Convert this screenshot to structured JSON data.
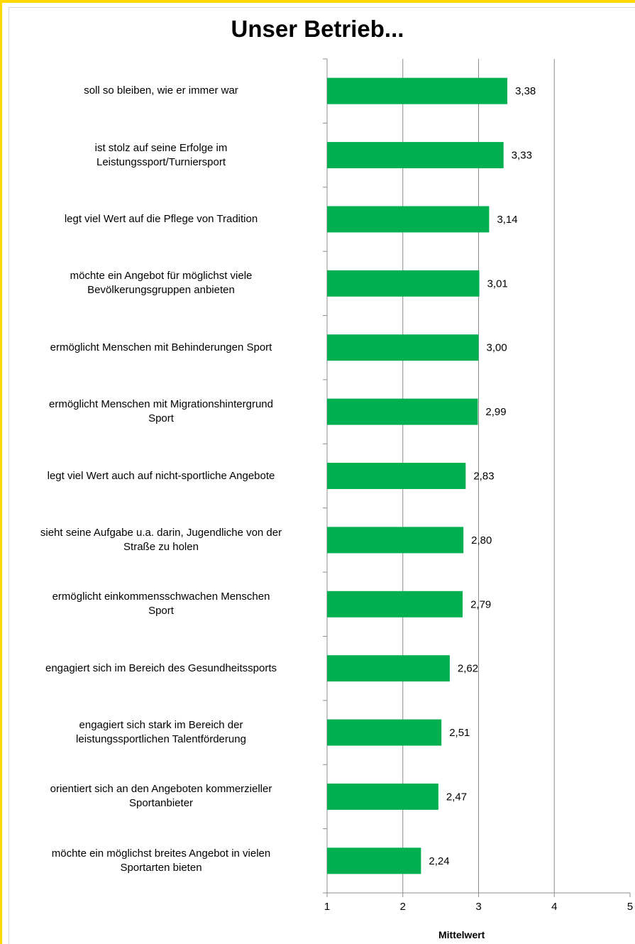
{
  "chart_data": {
    "type": "bar",
    "orientation": "horizontal",
    "title": "Unser Betrieb...",
    "xlabel": "Mittelwert",
    "ylabel": "",
    "xlim": [
      1,
      5
    ],
    "xticks": [
      "1",
      "2",
      "3",
      "4",
      "5"
    ],
    "grid": true,
    "categories": [
      "soll so bleiben, wie er immer war",
      "ist stolz auf seine Erfolge im Leistungssport/Turniersport",
      "legt viel Wert auf die Pflege von Tradition",
      "möchte ein Angebot für möglichst viele Bevölkerungsgruppen anbieten",
      "ermöglicht Menschen mit Behinderungen Sport",
      "ermöglicht Menschen mit Migrationshintergrund Sport",
      "legt viel Wert auch auf nicht-sportliche Angebote",
      "sieht seine Aufgabe u.a. darin, Jugendliche von der Straße zu holen",
      "ermöglicht einkommensschwachen Menschen Sport",
      "engagiert sich im Bereich des Gesundheitssports",
      "engagiert sich stark im Bereich der leistungssportlichen Talentförderung",
      "orientiert sich an den Angeboten kommerzieller Sportanbieter",
      "möchte ein möglichst breites Angebot in vielen Sportarten bieten"
    ],
    "category_lines": [
      [
        "soll so bleiben, wie er immer war"
      ],
      [
        "ist stolz auf seine Erfolge im",
        "Leistungssport/Turniersport"
      ],
      [
        "legt viel Wert auf die Pflege von Tradition"
      ],
      [
        "möchte ein Angebot für möglichst viele",
        "Bevölkerungsgruppen anbieten"
      ],
      [
        "ermöglicht Menschen mit Behinderungen Sport"
      ],
      [
        "ermöglicht Menschen mit Migrationshintergrund",
        "Sport"
      ],
      [
        "legt viel Wert auch auf nicht-sportliche Angebote"
      ],
      [
        "sieht seine Aufgabe u.a. darin, Jugendliche von der",
        "Straße zu holen"
      ],
      [
        "ermöglicht einkommensschwachen Menschen",
        "Sport"
      ],
      [
        "engagiert sich im Bereich des Gesundheitssports"
      ],
      [
        "engagiert sich stark im Bereich der",
        "leistungssportlichen Talentförderung"
      ],
      [
        "orientiert sich an den Angeboten kommerzieller",
        "Sportanbieter"
      ],
      [
        "möchte ein möglichst breites Angebot in vielen",
        "Sportarten bieten"
      ]
    ],
    "values": [
      3.38,
      3.33,
      3.14,
      3.01,
      3.0,
      2.99,
      2.83,
      2.8,
      2.79,
      2.62,
      2.51,
      2.47,
      2.24
    ],
    "value_labels": [
      "3,38",
      "3,33",
      "3,14",
      "3,01",
      "3,00",
      "2,99",
      "2,83",
      "2,80",
      "2,79",
      "2,62",
      "2,51",
      "2,47",
      "2,24"
    ],
    "bar_color": "#00b050",
    "frame_color": "#ffd800"
  }
}
